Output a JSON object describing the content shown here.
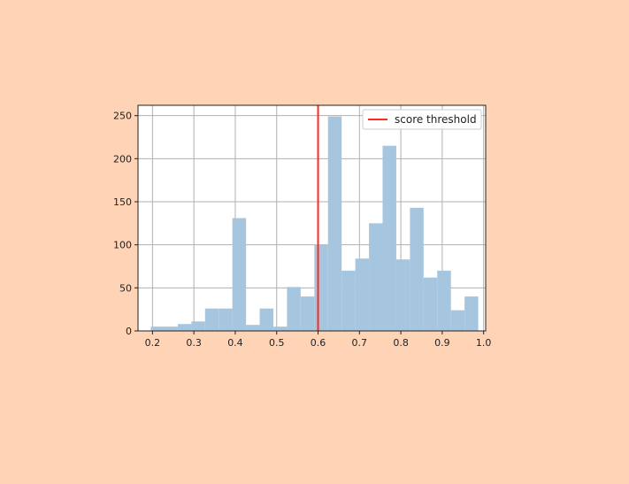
{
  "chart_data": {
    "type": "bar",
    "title": "",
    "xlabel": "",
    "ylabel": "",
    "xlim": [
      0.165,
      1.005
    ],
    "ylim": [
      0,
      262
    ],
    "xticks": [
      0.2,
      0.3,
      0.4,
      0.5,
      0.6,
      0.7,
      0.8,
      0.9,
      1.0
    ],
    "xtick_labels": [
      "0.2",
      "0.3",
      "0.4",
      "0.5",
      "0.6",
      "0.7",
      "0.8",
      "0.9",
      "1.0"
    ],
    "yticks": [
      0,
      50,
      100,
      150,
      200,
      250
    ],
    "ytick_labels": [
      "0",
      "50",
      "100",
      "150",
      "200",
      "250"
    ],
    "grid": true,
    "bin_edges": [
      0.196,
      0.228,
      0.261,
      0.294,
      0.327,
      0.36,
      0.393,
      0.426,
      0.459,
      0.492,
      0.525,
      0.558,
      0.591,
      0.624,
      0.657,
      0.69,
      0.723,
      0.756,
      0.789,
      0.822,
      0.855,
      0.888,
      0.921,
      0.954,
      0.987
    ],
    "counts": [
      5,
      5,
      8,
      11,
      26,
      26,
      131,
      7,
      26,
      5,
      51,
      40,
      100,
      249,
      70,
      84,
      125,
      215,
      83,
      143,
      62,
      70,
      24,
      40
    ],
    "bar_color": "#a6c6df",
    "threshold": {
      "label": "score threshold",
      "x": 0.6,
      "color": "#ff2a1a"
    },
    "legend_position": "top-right"
  }
}
